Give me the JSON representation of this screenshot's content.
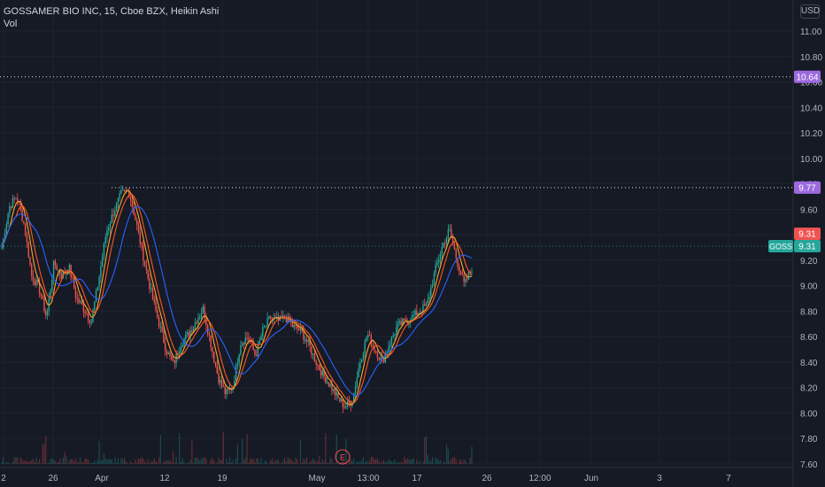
{
  "header": {
    "title": "GOSSAMER BIO INC, 15, Cboe BZX, Heikin Ashi",
    "volume_label": "Vol",
    "currency": "USD"
  },
  "colors": {
    "background": "#161a25",
    "grid": "#1f2330",
    "axis_text": "#b2b5be",
    "candle_up": "#26a69a",
    "candle_down": "#ef5350",
    "ma_fast": "#ff5722",
    "ma_slow": "#ffa726",
    "ma_long": "#2962ff",
    "marker_purple": "#9c6ade",
    "price_red": "#ef5350",
    "price_green": "#26a69a"
  },
  "chart_data": {
    "type": "line",
    "symbol": "GOSS",
    "ylim": [
      7.6,
      11.2
    ],
    "yticks": [
      "11.00",
      "10.80",
      "10.60",
      "10.40",
      "10.20",
      "10.00",
      "9.80",
      "9.60",
      "9.40",
      "9.20",
      "9.00",
      "8.80",
      "8.60",
      "8.40",
      "8.20",
      "8.00",
      "7.80",
      "7.60"
    ],
    "xticks": [
      "2",
      "26",
      "Apr",
      "12",
      "19",
      "May",
      "13:00",
      "17",
      "26",
      "12:00",
      "Jun",
      "3",
      "7"
    ],
    "series": [
      {
        "values": [
          9.3,
          9.62,
          9.7,
          9.48,
          9.08,
          8.98,
          8.75,
          9.18,
          9.08,
          9.15,
          8.9,
          8.82,
          8.72,
          9.05,
          9.42,
          9.58,
          9.72,
          9.75,
          9.5,
          9.22,
          8.95,
          8.72,
          8.5,
          8.38,
          8.55,
          8.62,
          8.72,
          8.82,
          8.55,
          8.28,
          8.15,
          8.22,
          8.55,
          8.6,
          8.45,
          8.65,
          8.75,
          8.72,
          8.75,
          8.68,
          8.65,
          8.55,
          8.42,
          8.3,
          8.22,
          8.12,
          8.05,
          8.1,
          8.4,
          8.62,
          8.5,
          8.4,
          8.55,
          8.68,
          8.72,
          8.75,
          8.8,
          8.85,
          9.1,
          9.3,
          9.44,
          9.2,
          9.0,
          9.14
        ]
      }
    ],
    "annotations": {
      "high_line": "10.64",
      "resistance_line": "9.77",
      "last_price": "9.31",
      "ticker_label": "GOSS",
      "ticker_price": "9.31",
      "earnings_marker": "E"
    }
  }
}
